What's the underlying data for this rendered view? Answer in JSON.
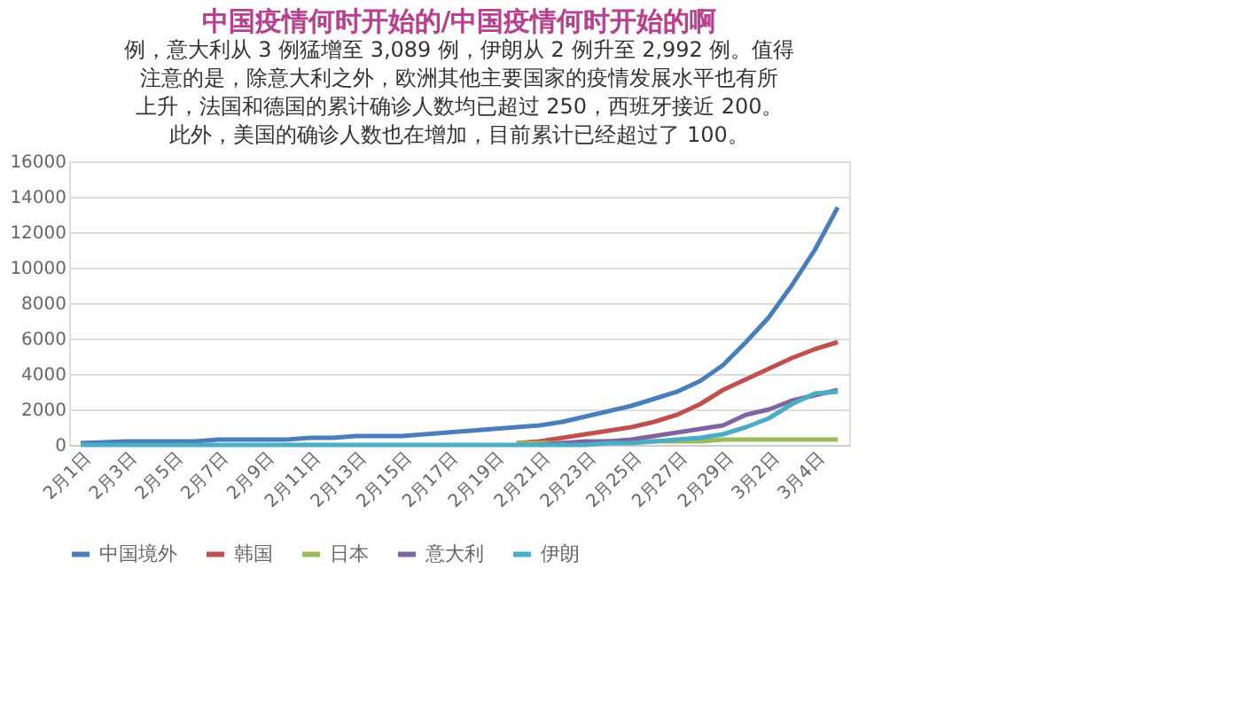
{
  "chart_data": {
    "type": "line",
    "title": "中国疫情何时开始的/中国疫情何时开始的啊",
    "annotations": [
      "例，意大利从 3 例猛增至 3,089 例，伊朗从 2 例升至 2,992 例。值得",
      "注意的是，除意大利之外，欧洲其他主要国家的疫情发展水平也有所",
      "上升，法国和德国的累计确诊人数均已超过 250，西班牙接近 200。",
      "此外，美国的确诊人数也在增加，目前累计已经超过了 100。"
    ],
    "categories": [
      "2月1日",
      null,
      "2月3日",
      null,
      "2月5日",
      null,
      "2月7日",
      null,
      "2月9日",
      null,
      "2月11日",
      null,
      "2月13日",
      null,
      "2月15日",
      null,
      "2月17日",
      null,
      "2月19日",
      null,
      "2月21日",
      null,
      "2月23日",
      null,
      "2月25日",
      null,
      "2月27日",
      null,
      "2月29日",
      null,
      "3月2日",
      null,
      "3月4日",
      null
    ],
    "series": [
      {
        "name": "中国境外",
        "color": "#4a7ebb",
        "values": [
          100,
          150,
          200,
          200,
          200,
          200,
          300,
          300,
          300,
          300,
          400,
          400,
          500,
          500,
          500,
          600,
          700,
          800,
          900,
          1000,
          1100,
          1300,
          1600,
          1900,
          2200,
          2600,
          3000,
          3600,
          4500,
          5800,
          7200,
          9000,
          11000,
          13400
        ]
      },
      {
        "name": "韩国",
        "color": "#c0504d",
        "values": [
          null,
          null,
          null,
          null,
          null,
          null,
          null,
          null,
          null,
          null,
          null,
          null,
          null,
          null,
          null,
          null,
          null,
          null,
          null,
          100,
          200,
          400,
          600,
          800,
          1000,
          1300,
          1700,
          2300,
          3100,
          3700,
          4300,
          4900,
          5400,
          5800
        ]
      },
      {
        "name": "日本",
        "color": "#9bbb59",
        "values": [
          null,
          null,
          null,
          null,
          null,
          null,
          null,
          null,
          null,
          null,
          null,
          null,
          null,
          null,
          null,
          null,
          null,
          null,
          null,
          100,
          100,
          100,
          100,
          200,
          200,
          200,
          200,
          200,
          300,
          300,
          300,
          300,
          300,
          300
        ]
      },
      {
        "name": "意大利",
        "color": "#8064a2",
        "values": [
          null,
          null,
          null,
          null,
          null,
          null,
          null,
          null,
          null,
          null,
          null,
          null,
          null,
          null,
          null,
          null,
          null,
          null,
          null,
          null,
          0,
          100,
          200,
          200,
          300,
          500,
          700,
          900,
          1100,
          1700,
          2000,
          2500,
          2800,
          3100
        ]
      },
      {
        "name": "伊朗",
        "color": "#4bacc6",
        "values": [
          0,
          0,
          0,
          0,
          0,
          0,
          0,
          0,
          0,
          0,
          0,
          0,
          0,
          0,
          0,
          0,
          0,
          0,
          0,
          0,
          0,
          0,
          0,
          100,
          100,
          200,
          300,
          400,
          600,
          1000,
          1500,
          2300,
          2900,
          3000
        ]
      }
    ],
    "ylim": [
      0,
      16000
    ],
    "yticks": [
      0,
      2000,
      4000,
      6000,
      8000,
      10000,
      12000,
      14000,
      16000
    ],
    "grid": "y",
    "legend": "bottom",
    "marker": "none",
    "line_style": "solid"
  }
}
